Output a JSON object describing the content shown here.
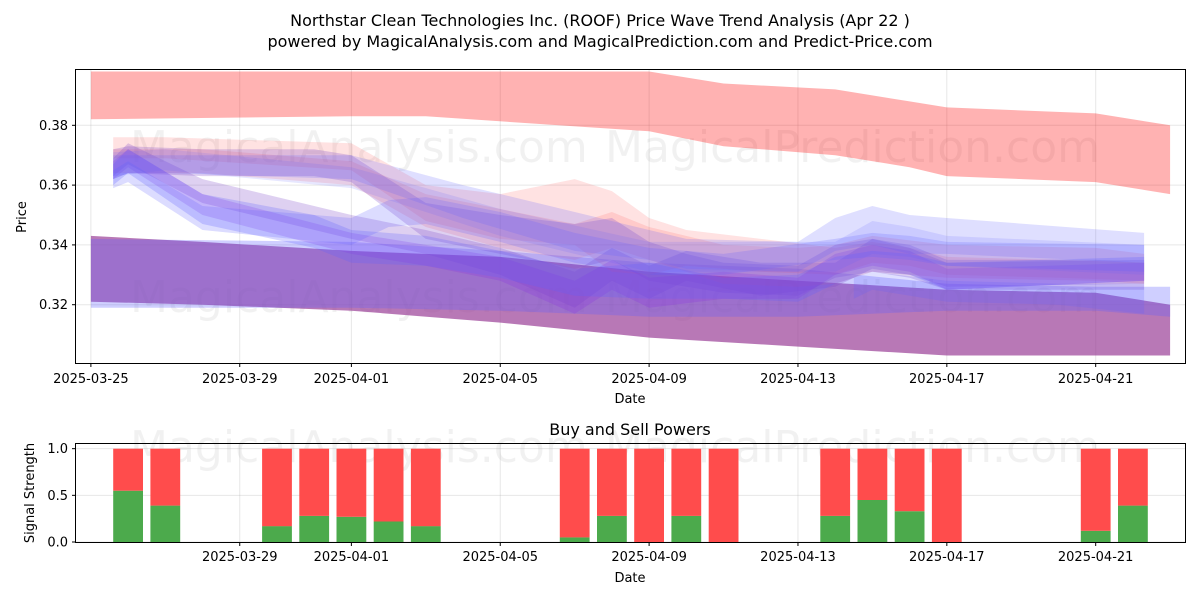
{
  "chart_data": [
    {
      "type": "area",
      "title": "Northstar Clean Technologies Inc. (ROOF) Price Wave Trend Analysis (Apr 22 )",
      "subtitle": "powered by MagicalAnalysis.com and MagicalPrediction.com and Predict-Price.com",
      "xlabel": "Date",
      "ylabel": "Price",
      "xlim": [
        "2025-03-24.6",
        "2025-04-23.4"
      ],
      "ylim": [
        0.3005,
        0.3985
      ],
      "x_ticks": [
        "2025-03-25",
        "2025-03-29",
        "2025-04-01",
        "2025-04-05",
        "2025-04-09",
        "2025-04-13",
        "2025-04-17",
        "2025-04-21"
      ],
      "y_ticks": [
        "0.32",
        "0.34",
        "0.36",
        "0.38"
      ],
      "grid": true,
      "series": [
        {
          "name": "upper red band",
          "color": "#ff0000",
          "opacity": 0.3,
          "x": [
            "2025-03-25",
            "2025-04-01",
            "2025-04-03",
            "2025-04-09",
            "2025-04-11",
            "2025-04-14",
            "2025-04-16",
            "2025-04-17",
            "2025-04-21",
            "2025-04-23"
          ],
          "upper": [
            0.398,
            0.398,
            0.398,
            0.398,
            0.394,
            0.392,
            0.388,
            0.386,
            0.384,
            0.38
          ],
          "lower": [
            0.382,
            0.383,
            0.383,
            0.378,
            0.373,
            0.37,
            0.366,
            0.363,
            0.361,
            0.357
          ]
        },
        {
          "name": "lower purple band",
          "color": "#9a3f97",
          "opacity": 0.7,
          "x": [
            "2025-03-25",
            "2025-03-28",
            "2025-04-01",
            "2025-04-05",
            "2025-04-09",
            "2025-04-13",
            "2025-04-17",
            "2025-04-21",
            "2025-04-23"
          ],
          "upper": [
            0.343,
            0.341,
            0.338,
            0.336,
            0.331,
            0.328,
            0.325,
            0.324,
            0.32
          ],
          "lower": [
            0.321,
            0.32,
            0.318,
            0.314,
            0.309,
            0.306,
            0.303,
            0.303,
            0.303
          ]
        },
        {
          "name": "blue lower band",
          "color": "#6060ff",
          "opacity": 0.3,
          "x": [
            "2025-03-25",
            "2025-04-01",
            "2025-04-05",
            "2025-04-09",
            "2025-04-13",
            "2025-04-17",
            "2025-04-21",
            "2025-04-23"
          ],
          "upper": [
            0.342,
            0.341,
            0.338,
            0.334,
            0.332,
            0.327,
            0.326,
            0.326
          ],
          "lower": [
            0.319,
            0.319,
            0.318,
            0.316,
            0.316,
            0.318,
            0.318,
            0.316
          ]
        },
        {
          "name": "wave red 1",
          "color": "#ff6060",
          "opacity": 0.18,
          "x": [
            "2025-03-25.6",
            "2025-03-27",
            "2025-04-01",
            "2025-04-03",
            "2025-04-05",
            "2025-04-07",
            "2025-04-08",
            "2025-04-09",
            "2025-04-10",
            "2025-04-12",
            "2025-04-14",
            "2025-04-15",
            "2025-04-16",
            "2025-04-17",
            "2025-04-20",
            "2025-04-22.3"
          ],
          "upper": [
            0.376,
            0.376,
            0.374,
            0.36,
            0.357,
            0.362,
            0.358,
            0.349,
            0.345,
            0.342,
            0.339,
            0.341,
            0.339,
            0.336,
            0.335,
            0.334
          ],
          "lower": [
            0.369,
            0.369,
            0.365,
            0.348,
            0.342,
            0.34,
            0.331,
            0.33,
            0.333,
            0.331,
            0.33,
            0.334,
            0.333,
            0.33,
            0.329,
            0.328
          ]
        },
        {
          "name": "wave red 2",
          "color": "#ff6060",
          "opacity": 0.18,
          "x": [
            "2025-03-25.6",
            "2025-03-28",
            "2025-04-01",
            "2025-04-03",
            "2025-04-05",
            "2025-04-07",
            "2025-04-08",
            "2025-04-09",
            "2025-04-11",
            "2025-04-13",
            "2025-04-14",
            "2025-04-15",
            "2025-04-17",
            "2025-04-21",
            "2025-04-22.3"
          ],
          "upper": [
            0.372,
            0.372,
            0.368,
            0.357,
            0.352,
            0.347,
            0.351,
            0.346,
            0.34,
            0.339,
            0.34,
            0.343,
            0.34,
            0.339,
            0.337
          ],
          "lower": [
            0.364,
            0.364,
            0.36,
            0.346,
            0.339,
            0.335,
            0.339,
            0.335,
            0.327,
            0.326,
            0.327,
            0.331,
            0.329,
            0.328,
            0.327
          ]
        },
        {
          "name": "wave purple 1",
          "color": "#7b44c8",
          "opacity": 0.25,
          "x": [
            "2025-03-25.6",
            "2025-03-26",
            "2025-03-28",
            "2025-03-31",
            "2025-04-01",
            "2025-04-03",
            "2025-04-05",
            "2025-04-07",
            "2025-04-08",
            "2025-04-09",
            "2025-04-10",
            "2025-04-11",
            "2025-04-13",
            "2025-04-14",
            "2025-04-15",
            "2025-04-16",
            "2025-04-17",
            "2025-04-21",
            "2025-04-22.3"
          ],
          "upper": [
            0.372,
            0.373,
            0.372,
            0.372,
            0.37,
            0.354,
            0.35,
            0.347,
            0.349,
            0.341,
            0.337,
            0.334,
            0.333,
            0.34,
            0.342,
            0.34,
            0.335,
            0.335,
            0.334
          ],
          "lower": [
            0.362,
            0.364,
            0.363,
            0.363,
            0.361,
            0.342,
            0.337,
            0.332,
            0.335,
            0.328,
            0.326,
            0.324,
            0.323,
            0.329,
            0.331,
            0.329,
            0.325,
            0.325,
            0.325
          ]
        },
        {
          "name": "wave purple 2",
          "color": "#7b44c8",
          "opacity": 0.25,
          "x": [
            "2025-03-25.6",
            "2025-03-26",
            "2025-03-28",
            "2025-04-01",
            "2025-04-03",
            "2025-04-05",
            "2025-04-07",
            "2025-04-08",
            "2025-04-09",
            "2025-04-10",
            "2025-04-12",
            "2025-04-14",
            "2025-04-15",
            "2025-04-16",
            "2025-04-17",
            "2025-04-22.3"
          ],
          "upper": [
            0.369,
            0.374,
            0.362,
            0.35,
            0.345,
            0.339,
            0.331,
            0.339,
            0.333,
            0.338,
            0.334,
            0.334,
            0.342,
            0.339,
            0.334,
            0.335
          ],
          "lower": [
            0.363,
            0.367,
            0.354,
            0.342,
            0.337,
            0.33,
            0.319,
            0.328,
            0.322,
            0.328,
            0.323,
            0.326,
            0.332,
            0.33,
            0.326,
            0.327
          ]
        },
        {
          "name": "wave purple 3",
          "color": "#8a2be2",
          "opacity": 0.22,
          "x": [
            "2025-03-25.6",
            "2025-03-26",
            "2025-03-28",
            "2025-04-01",
            "2025-04-03",
            "2025-04-05",
            "2025-04-07",
            "2025-04-08",
            "2025-04-09",
            "2025-04-11",
            "2025-04-13",
            "2025-04-14",
            "2025-04-15",
            "2025-04-16",
            "2025-04-17",
            "2025-04-22.3"
          ],
          "upper": [
            0.368,
            0.372,
            0.357,
            0.344,
            0.34,
            0.336,
            0.328,
            0.335,
            0.329,
            0.331,
            0.329,
            0.337,
            0.34,
            0.338,
            0.332,
            0.334
          ],
          "lower": [
            0.362,
            0.366,
            0.35,
            0.337,
            0.333,
            0.328,
            0.317,
            0.325,
            0.319,
            0.322,
            0.322,
            0.33,
            0.333,
            0.331,
            0.325,
            0.328
          ]
        },
        {
          "name": "wave blue 1",
          "color": "#6060ff",
          "opacity": 0.25,
          "x": [
            "2025-03-25.6",
            "2025-03-26",
            "2025-03-28",
            "2025-03-31",
            "2025-04-01",
            "2025-04-03",
            "2025-04-05",
            "2025-04-07",
            "2025-04-09",
            "2025-04-11",
            "2025-04-13",
            "2025-04-14",
            "2025-04-15",
            "2025-04-16",
            "2025-04-17",
            "2025-04-22.3"
          ],
          "upper": [
            0.367,
            0.372,
            0.357,
            0.35,
            0.345,
            0.343,
            0.338,
            0.332,
            0.334,
            0.329,
            0.33,
            0.336,
            0.338,
            0.337,
            0.334,
            0.336
          ],
          "lower": [
            0.36,
            0.364,
            0.347,
            0.339,
            0.334,
            0.333,
            0.329,
            0.323,
            0.322,
            0.322,
            0.321,
            0.327,
            0.331,
            0.33,
            0.325,
            0.328
          ]
        },
        {
          "name": "wave blue 2",
          "color": "#6060ff",
          "opacity": 0.22,
          "x": [
            "2025-03-25.6",
            "2025-03-26",
            "2025-03-28",
            "2025-04-01",
            "2025-04-02",
            "2025-04-03",
            "2025-04-05",
            "2025-04-07",
            "2025-04-09",
            "2025-04-11",
            "2025-04-14",
            "2025-04-15",
            "2025-04-16",
            "2025-04-17",
            "2025-04-22.3"
          ],
          "upper": [
            0.365,
            0.368,
            0.353,
            0.349,
            0.355,
            0.356,
            0.351,
            0.344,
            0.339,
            0.337,
            0.342,
            0.344,
            0.343,
            0.341,
            0.34
          ],
          "lower": [
            0.359,
            0.361,
            0.345,
            0.34,
            0.346,
            0.347,
            0.341,
            0.334,
            0.33,
            0.33,
            0.335,
            0.336,
            0.335,
            0.333,
            0.331
          ]
        },
        {
          "name": "wave blue 3",
          "color": "#6060ff",
          "opacity": 0.2,
          "x": [
            "2025-03-25.6",
            "2025-03-26",
            "2025-03-27",
            "2025-04-01",
            "2025-04-04",
            "2025-04-07",
            "2025-04-09",
            "2025-04-10",
            "2025-04-13",
            "2025-04-14",
            "2025-04-15",
            "2025-04-16",
            "2025-04-17",
            "2025-04-22.3"
          ],
          "upper": [
            0.37,
            0.37,
            0.37,
            0.37,
            0.36,
            0.351,
            0.345,
            0.342,
            0.341,
            0.349,
            0.353,
            0.35,
            0.349,
            0.344
          ],
          "lower": [
            0.362,
            0.364,
            0.364,
            0.362,
            0.349,
            0.338,
            0.335,
            0.332,
            0.331,
            0.338,
            0.34,
            0.337,
            0.337,
            0.334
          ]
        },
        {
          "name": "wave blue 4",
          "color": "#6060ff",
          "opacity": 0.15,
          "x": [
            "2025-03-25.6",
            "2025-03-27",
            "2025-04-01",
            "2025-04-05",
            "2025-04-09",
            "2025-04-14",
            "2025-04-15",
            "2025-04-16",
            "2025-04-17",
            "2025-04-22.3"
          ],
          "upper": [
            0.371,
            0.372,
            0.366,
            0.352,
            0.341,
            0.341,
            0.348,
            0.346,
            0.343,
            0.34
          ],
          "lower": [
            0.363,
            0.365,
            0.359,
            0.343,
            0.331,
            0.331,
            0.337,
            0.336,
            0.333,
            0.33
          ]
        },
        {
          "name": "wave blue 5",
          "color": "#6060ff",
          "opacity": 0.2,
          "x": [
            "2025-04-14.5",
            "2025-04-15",
            "2025-04-17",
            "2025-04-20",
            "2025-04-22.3"
          ],
          "upper": [
            0.329,
            0.331,
            0.328,
            0.327,
            0.327
          ],
          "lower": [
            0.322,
            0.325,
            0.321,
            0.32,
            0.317
          ]
        }
      ]
    },
    {
      "type": "bar",
      "title": "Buy and Sell Powers",
      "xlabel": "Date",
      "ylabel": "Signal Strength",
      "xlim": [
        "2025-03-24.6",
        "2025-04-23.4"
      ],
      "ylim": [
        0.0,
        1.05
      ],
      "x_ticks": [
        "2025-03-29",
        "2025-04-01",
        "2025-04-05",
        "2025-04-09",
        "2025-04-13",
        "2025-04-17",
        "2025-04-21"
      ],
      "y_ticks": [
        "0.0",
        "0.5",
        "1.0"
      ],
      "grid": true,
      "stacked": true,
      "colors": {
        "buy": "#4caa4c",
        "sell": "#ff4c4c"
      },
      "categories": [
        "2025-03-26",
        "2025-03-27",
        "2025-03-30",
        "2025-03-31",
        "2025-04-01",
        "2025-04-02",
        "2025-04-03",
        "2025-04-07",
        "2025-04-08",
        "2025-04-09",
        "2025-04-10",
        "2025-04-11",
        "2025-04-14",
        "2025-04-15",
        "2025-04-16",
        "2025-04-17",
        "2025-04-21",
        "2025-04-22"
      ],
      "series": [
        {
          "name": "Buy",
          "values": [
            0.55,
            0.39,
            0.17,
            0.28,
            0.27,
            0.22,
            0.17,
            0.05,
            0.28,
            0.0,
            0.28,
            0.0,
            0.28,
            0.45,
            0.33,
            0.0,
            0.12,
            0.39
          ]
        },
        {
          "name": "Sell",
          "values": [
            0.45,
            0.61,
            0.83,
            0.72,
            0.73,
            0.78,
            0.83,
            0.95,
            0.72,
            1.0,
            0.72,
            1.0,
            0.72,
            0.55,
            0.67,
            1.0,
            0.88,
            0.61
          ]
        }
      ]
    }
  ]
}
